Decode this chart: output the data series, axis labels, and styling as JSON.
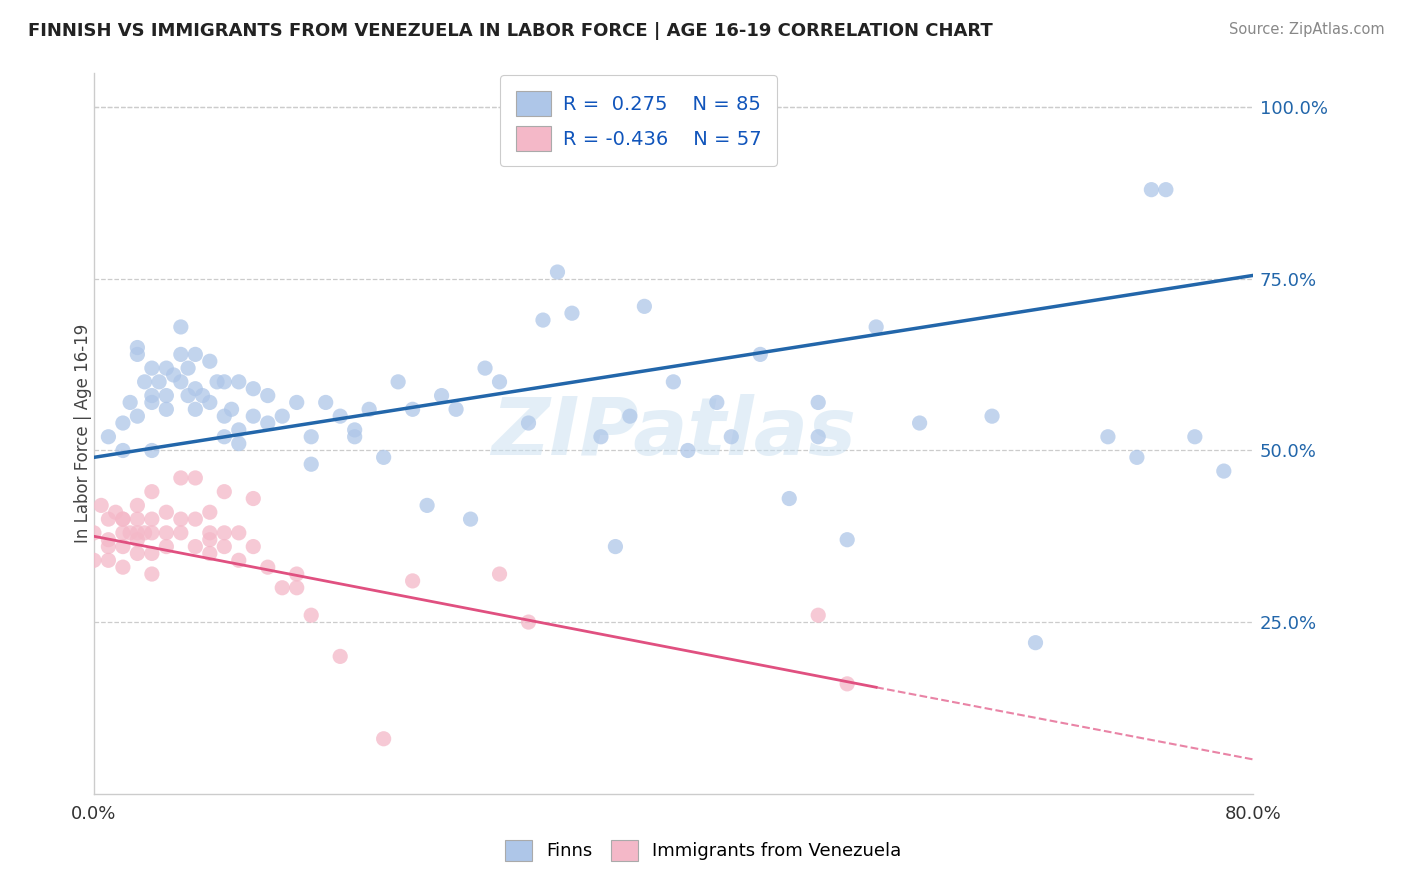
{
  "title": "FINNISH VS IMMIGRANTS FROM VENEZUELA IN LABOR FORCE | AGE 16-19 CORRELATION CHART",
  "source": "Source: ZipAtlas.com",
  "ylabel": "In Labor Force | Age 16-19",
  "xlim": [
    0.0,
    0.8
  ],
  "ylim": [
    0.0,
    1.05
  ],
  "blue_R": 0.275,
  "blue_N": 85,
  "pink_R": -0.436,
  "pink_N": 57,
  "blue_color": "#aec6e8",
  "pink_color": "#f4b8c8",
  "blue_line_color": "#2266aa",
  "pink_line_color": "#e05080",
  "blue_line_start_x": 0.0,
  "blue_line_start_y": 0.49,
  "blue_line_end_x": 0.8,
  "blue_line_end_y": 0.755,
  "pink_line_start_x": 0.0,
  "pink_line_start_y": 0.375,
  "pink_line_end_x": 0.54,
  "pink_line_end_y": 0.155,
  "pink_line_dash_start_x": 0.54,
  "pink_line_dash_start_y": 0.155,
  "pink_line_dash_end_x": 0.8,
  "pink_line_dash_end_y": 0.05,
  "watermark_text": "ZIPatlas",
  "legend_label_blue": "Finns",
  "legend_label_pink": "Immigrants from Venezuela",
  "blue_scatter_x": [
    0.01,
    0.02,
    0.02,
    0.025,
    0.03,
    0.03,
    0.03,
    0.035,
    0.04,
    0.04,
    0.04,
    0.04,
    0.045,
    0.05,
    0.05,
    0.05,
    0.055,
    0.06,
    0.06,
    0.06,
    0.065,
    0.065,
    0.07,
    0.07,
    0.07,
    0.075,
    0.08,
    0.08,
    0.085,
    0.09,
    0.09,
    0.09,
    0.095,
    0.1,
    0.1,
    0.1,
    0.11,
    0.11,
    0.12,
    0.12,
    0.13,
    0.14,
    0.15,
    0.15,
    0.16,
    0.17,
    0.18,
    0.18,
    0.19,
    0.2,
    0.21,
    0.22,
    0.23,
    0.24,
    0.25,
    0.26,
    0.27,
    0.28,
    0.3,
    0.31,
    0.32,
    0.33,
    0.35,
    0.36,
    0.37,
    0.38,
    0.4,
    0.41,
    0.43,
    0.44,
    0.46,
    0.48,
    0.5,
    0.5,
    0.52,
    0.54,
    0.57,
    0.62,
    0.65,
    0.7,
    0.72,
    0.73,
    0.74,
    0.76,
    0.78
  ],
  "blue_scatter_y": [
    0.52,
    0.5,
    0.54,
    0.57,
    0.55,
    0.64,
    0.65,
    0.6,
    0.58,
    0.62,
    0.57,
    0.5,
    0.6,
    0.62,
    0.58,
    0.56,
    0.61,
    0.64,
    0.68,
    0.6,
    0.62,
    0.58,
    0.64,
    0.59,
    0.56,
    0.58,
    0.63,
    0.57,
    0.6,
    0.6,
    0.55,
    0.52,
    0.56,
    0.6,
    0.53,
    0.51,
    0.59,
    0.55,
    0.58,
    0.54,
    0.55,
    0.57,
    0.52,
    0.48,
    0.57,
    0.55,
    0.53,
    0.52,
    0.56,
    0.49,
    0.6,
    0.56,
    0.42,
    0.58,
    0.56,
    0.4,
    0.62,
    0.6,
    0.54,
    0.69,
    0.76,
    0.7,
    0.52,
    0.36,
    0.55,
    0.71,
    0.6,
    0.5,
    0.57,
    0.52,
    0.64,
    0.43,
    0.57,
    0.52,
    0.37,
    0.68,
    0.54,
    0.55,
    0.22,
    0.52,
    0.49,
    0.88,
    0.88,
    0.52,
    0.47
  ],
  "pink_scatter_x": [
    0.0,
    0.0,
    0.005,
    0.01,
    0.01,
    0.01,
    0.01,
    0.015,
    0.02,
    0.02,
    0.02,
    0.02,
    0.02,
    0.025,
    0.03,
    0.03,
    0.03,
    0.03,
    0.03,
    0.035,
    0.04,
    0.04,
    0.04,
    0.04,
    0.04,
    0.05,
    0.05,
    0.05,
    0.06,
    0.06,
    0.06,
    0.07,
    0.07,
    0.07,
    0.08,
    0.08,
    0.08,
    0.08,
    0.09,
    0.09,
    0.09,
    0.1,
    0.1,
    0.11,
    0.11,
    0.12,
    0.13,
    0.14,
    0.14,
    0.15,
    0.17,
    0.2,
    0.22,
    0.28,
    0.3,
    0.5,
    0.52
  ],
  "pink_scatter_y": [
    0.38,
    0.34,
    0.42,
    0.4,
    0.37,
    0.36,
    0.34,
    0.41,
    0.4,
    0.38,
    0.4,
    0.36,
    0.33,
    0.38,
    0.4,
    0.38,
    0.37,
    0.35,
    0.42,
    0.38,
    0.4,
    0.44,
    0.38,
    0.35,
    0.32,
    0.41,
    0.38,
    0.36,
    0.4,
    0.46,
    0.38,
    0.46,
    0.4,
    0.36,
    0.41,
    0.38,
    0.37,
    0.35,
    0.44,
    0.38,
    0.36,
    0.38,
    0.34,
    0.43,
    0.36,
    0.33,
    0.3,
    0.32,
    0.3,
    0.26,
    0.2,
    0.08,
    0.31,
    0.32,
    0.25,
    0.26,
    0.16
  ]
}
